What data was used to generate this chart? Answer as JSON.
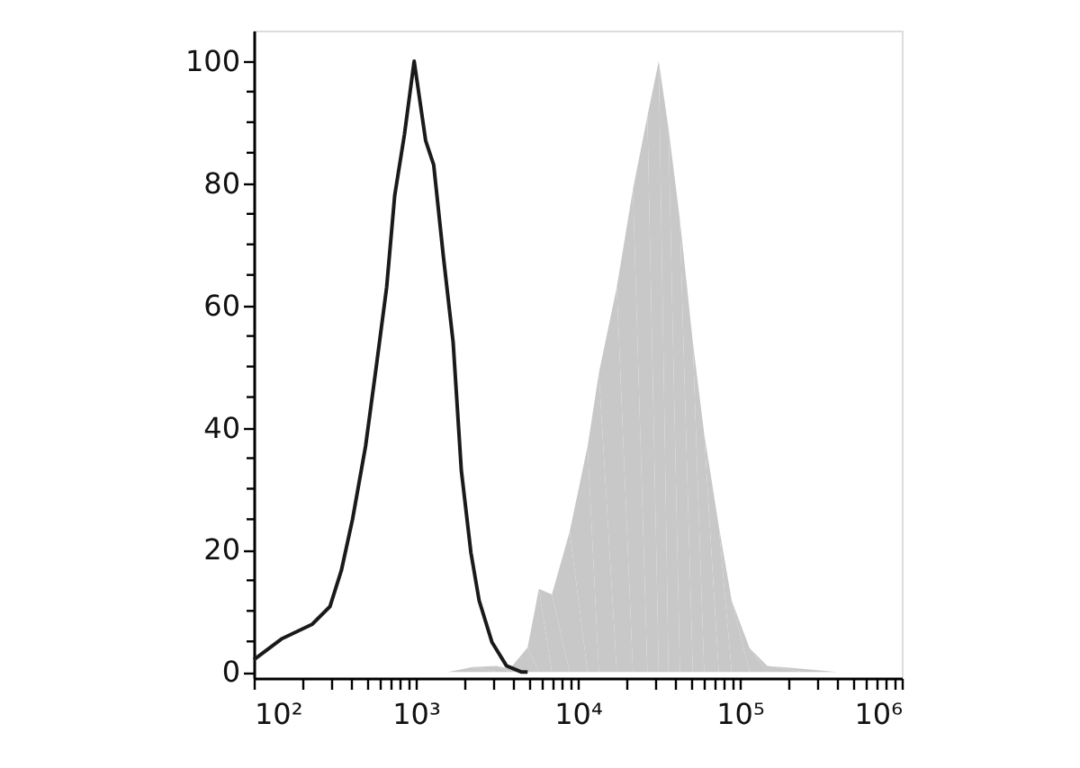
{
  "chart_data": {
    "type": "line",
    "log": "x",
    "xlim": [
      100,
      1000000
    ],
    "ylim": [
      -1,
      105
    ],
    "xticks": [
      {
        "value": 100,
        "label": "10²"
      },
      {
        "value": 200,
        "label": null
      },
      {
        "value": 300,
        "label": null
      },
      {
        "value": 400,
        "label": null
      },
      {
        "value": 500,
        "label": null
      },
      {
        "value": 600,
        "label": null
      },
      {
        "value": 700,
        "label": null
      },
      {
        "value": 800,
        "label": null
      },
      {
        "value": 900,
        "label": null
      },
      {
        "value": 1000,
        "label": "10³"
      },
      {
        "value": 2000,
        "label": null
      },
      {
        "value": 3000,
        "label": null
      },
      {
        "value": 4000,
        "label": null
      },
      {
        "value": 5000,
        "label": null
      },
      {
        "value": 6000,
        "label": null
      },
      {
        "value": 7000,
        "label": null
      },
      {
        "value": 8000,
        "label": null
      },
      {
        "value": 9000,
        "label": null
      },
      {
        "value": 10000,
        "label": "10⁴"
      },
      {
        "value": 20000,
        "label": null
      },
      {
        "value": 30000,
        "label": null
      },
      {
        "value": 40000,
        "label": null
      },
      {
        "value": 50000,
        "label": null
      },
      {
        "value": 60000,
        "label": null
      },
      {
        "value": 70000,
        "label": null
      },
      {
        "value": 80000,
        "label": null
      },
      {
        "value": 90000,
        "label": null
      },
      {
        "value": 100000,
        "label": "10⁵"
      },
      {
        "value": 200000,
        "label": null
      },
      {
        "value": 300000,
        "label": null
      },
      {
        "value": 400000,
        "label": null
      },
      {
        "value": 500000,
        "label": null
      },
      {
        "value": 600000,
        "label": null
      },
      {
        "value": 700000,
        "label": null
      },
      {
        "value": 800000,
        "label": null
      },
      {
        "value": 900000,
        "label": null
      },
      {
        "value": 1000000,
        "label": "10⁶"
      }
    ],
    "yticks": [
      0,
      {
        "value": 5,
        "label": null
      },
      {
        "value": 10,
        "label": null
      },
      {
        "value": 15,
        "label": null
      },
      20,
      {
        "value": 25,
        "label": null
      },
      {
        "value": 30,
        "label": null
      },
      {
        "value": 35,
        "label": null
      },
      40,
      {
        "value": 45,
        "label": null
      },
      {
        "value": 50,
        "label": null
      },
      {
        "value": 55,
        "label": null
      },
      60,
      {
        "value": 65,
        "label": null
      },
      {
        "value": 70,
        "label": null
      },
      {
        "value": 75,
        "label": null
      },
      80,
      {
        "value": 85,
        "label": null
      },
      {
        "value": 90,
        "label": null
      },
      {
        "value": 95,
        "label": null
      },
      100
    ],
    "grid": false,
    "marker": "none",
    "line_style": "solid",
    "series": [
      {
        "type": "area",
        "color": "#c8c8c8",
        "x": [
          1580,
          2240,
          3160,
          3800,
          4900,
          5750,
          6920,
          8910,
          11500,
          13500,
          17400,
          21900,
          26900,
          31600,
          36300,
          42700,
          51300,
          60300,
          74100,
          89100,
          115000,
          148000,
          245000,
          398000
        ],
        "values": [
          0,
          0.8,
          1,
          0.5,
          4,
          13.6,
          12.7,
          23,
          37,
          49,
          63,
          79,
          91,
          100,
          89,
          74,
          54,
          39,
          24,
          11.7,
          3.9,
          1,
          0.5,
          0
        ]
      },
      {
        "color": "#1a1a1a",
        "x": [
          100,
          148,
          229,
          295,
          347,
          407,
          490,
          575,
          661,
          741,
          851,
          977,
          1150,
          1290,
          1480,
          1700,
          1910,
          2190,
          2460,
          2950,
          3630,
          4470,
          4900
        ],
        "values": [
          2,
          5.4,
          7.8,
          10.7,
          16.6,
          25,
          37,
          50.7,
          63,
          78,
          88,
          100,
          87,
          83,
          68,
          54,
          33,
          19.5,
          11.7,
          4.9,
          1,
          0,
          0
        ]
      }
    ]
  }
}
